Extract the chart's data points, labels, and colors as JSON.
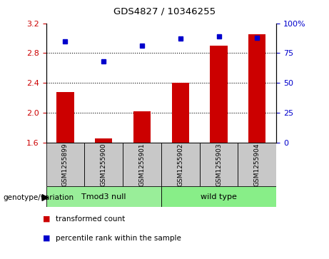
{
  "title": "GDS4827 / 10346255",
  "samples": [
    "GSM1255899",
    "GSM1255900",
    "GSM1255901",
    "GSM1255902",
    "GSM1255903",
    "GSM1255904"
  ],
  "transformed_counts": [
    2.28,
    1.65,
    2.02,
    2.4,
    2.9,
    3.05
  ],
  "percentile_ranks": [
    85,
    68,
    81,
    87,
    89,
    88
  ],
  "ylim_left": [
    1.6,
    3.2
  ],
  "ylim_right": [
    0,
    100
  ],
  "yticks_left": [
    1.6,
    2.0,
    2.4,
    2.8,
    3.2
  ],
  "yticks_right": [
    0,
    25,
    50,
    75,
    100
  ],
  "bar_color": "#cc0000",
  "dot_color": "#0000cc",
  "bar_bottom": 1.6,
  "groups": [
    {
      "label": "Tmod3 null",
      "indices": [
        0,
        1,
        2
      ],
      "color": "#99ee99"
    },
    {
      "label": "wild type",
      "indices": [
        3,
        4,
        5
      ],
      "color": "#88ee88"
    }
  ],
  "group_label": "genotype/variation",
  "legend_items": [
    {
      "label": "transformed count",
      "color": "#cc0000"
    },
    {
      "label": "percentile rank within the sample",
      "color": "#0000cc"
    }
  ],
  "gridlines": [
    2.0,
    2.4,
    2.8
  ],
  "tick_label_color_left": "#cc0000",
  "tick_label_color_right": "#0000cc",
  "figsize": [
    4.61,
    3.63
  ],
  "dpi": 100
}
